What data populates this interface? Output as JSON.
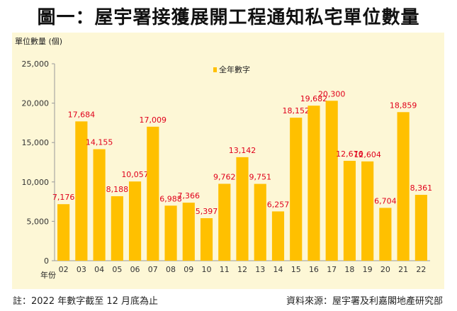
{
  "title": "圖一：屋宇署接獲展開工程通知私宅單位數量",
  "note": "註：2022 年數字截至 12 月底為止",
  "source": "資料來源：屋宇署及利嘉閣地產研究部",
  "colors": {
    "bar": "#ffc000",
    "label": "#e0001b",
    "background": "#fdf7d6"
  },
  "chart_data": {
    "type": "bar",
    "title": "",
    "ylabel": "單位數量 (個)",
    "xlabel": "年份",
    "legend": "全年數字",
    "ylim": [
      0,
      25000
    ],
    "yticks": [
      "0",
      "5,000",
      "10,000",
      "15,000",
      "20,000",
      "25,000"
    ],
    "categories": [
      "02",
      "03",
      "04",
      "05",
      "06",
      "07",
      "08",
      "09",
      "10",
      "11",
      "12",
      "13",
      "14",
      "15",
      "16",
      "17",
      "18",
      "19",
      "20",
      "21",
      "22"
    ],
    "values": [
      7176,
      17684,
      14155,
      8188,
      10057,
      17009,
      6988,
      7366,
      5397,
      9762,
      13142,
      9751,
      6257,
      18152,
      19682,
      20300,
      12676,
      12604,
      6704,
      18859,
      8361
    ],
    "labels": [
      "7,176",
      "17,684",
      "14,155",
      "8,188",
      "10,057",
      "17,009",
      "6,988",
      "7,366",
      "5,397",
      "9,762",
      "13,142",
      "9,751",
      "6,257",
      "18,152",
      "19,682",
      "20,300",
      "12,676",
      "12,604",
      "6,704",
      "18,859",
      "8,361"
    ]
  }
}
